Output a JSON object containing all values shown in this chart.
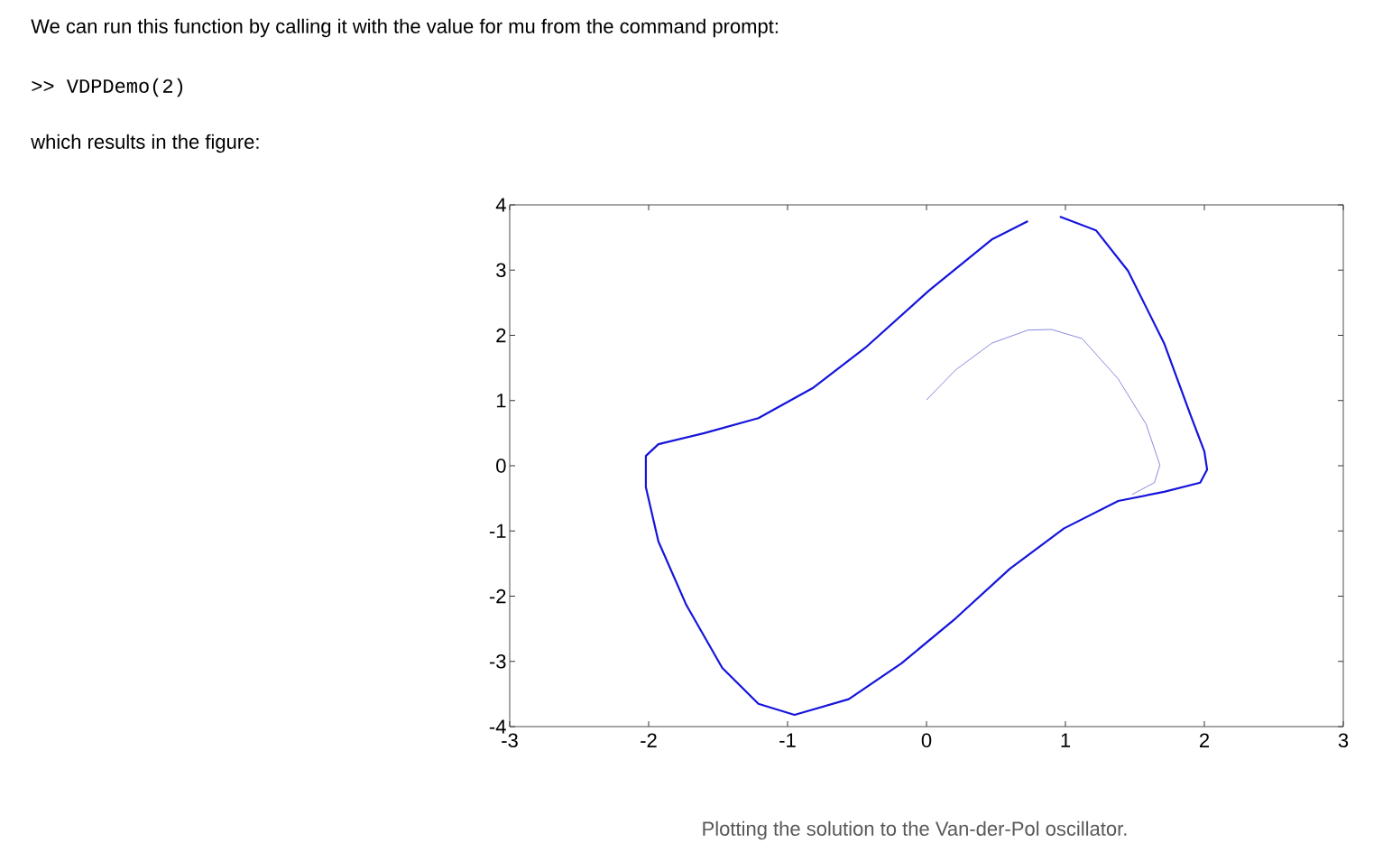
{
  "chart_data": {
    "type": "line",
    "annotations": [
      "We can run this function by calling it with the value for mu from the command prompt:",
      ">> VDPDemo(2)",
      "which results in the figure:",
      "Plotting the solution to the Van-der-Pol oscillator."
    ],
    "series": [
      {
        "color": "#1414dc",
        "x": [
          0.96,
          1.22,
          1.45,
          1.71,
          1.9,
          2.0,
          2.02,
          1.97,
          1.71,
          1.38,
          0.99,
          0.6,
          0.21,
          -0.18,
          -0.56,
          -0.95,
          -1.21,
          -1.47,
          -1.73,
          -1.93,
          -2.02,
          -2.02,
          -1.93,
          -1.6,
          -1.21,
          -0.82,
          -0.44,
          0.02,
          0.47,
          0.73
        ],
        "values": [
          3.82,
          3.61,
          2.99,
          1.88,
          0.78,
          0.22,
          -0.06,
          -0.26,
          -0.4,
          -0.54,
          -0.96,
          -1.58,
          -2.34,
          -3.03,
          -3.58,
          -3.82,
          -3.65,
          -3.1,
          -2.13,
          -1.16,
          -0.33,
          0.15,
          0.33,
          0.5,
          0.73,
          1.19,
          1.81,
          2.69,
          3.47,
          3.75
        ]
      },
      {
        "color": "#6c6cd6",
        "x": [
          0,
          0.21,
          0.47,
          0.73,
          0.9,
          1.12,
          1.38,
          1.58,
          1.68,
          1.64,
          1.48
        ],
        "values": [
          1.01,
          1.47,
          1.88,
          2.08,
          2.09,
          1.95,
          1.33,
          0.64,
          0.01,
          -0.26,
          -0.44
        ]
      }
    ],
    "xlim": [
      -3,
      3
    ],
    "ylim": [
      -4,
      4
    ],
    "xticks": [
      -3,
      -2,
      -1,
      0,
      1,
      2,
      3
    ],
    "yticks": [
      -4,
      -3,
      -2,
      -1,
      0,
      1,
      2,
      3,
      4
    ]
  }
}
